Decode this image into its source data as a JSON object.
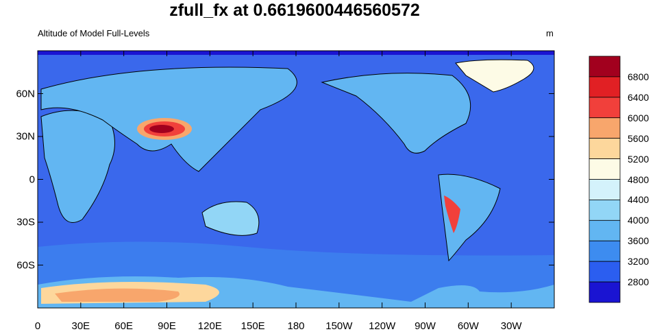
{
  "title": "zfull_fx at 0.6619600446560572",
  "subtitle_left": "Altitude of Model Full-Levels",
  "subtitle_right": "m",
  "map": {
    "projection": "cylindrical-equidistant",
    "lon_range": [
      0,
      360
    ],
    "lat_range": [
      -90,
      90
    ],
    "background_level_color": "#3a68ec",
    "y_ticks": [
      {
        "lat": 60,
        "label": "60N"
      },
      {
        "lat": 30,
        "label": "30N"
      },
      {
        "lat": 0,
        "label": "0"
      },
      {
        "lat": -30,
        "label": "30S"
      },
      {
        "lat": -60,
        "label": "60S"
      }
    ],
    "x_ticks": [
      {
        "lon": 0,
        "label": "0"
      },
      {
        "lon": 30,
        "label": "30E"
      },
      {
        "lon": 60,
        "label": "60E"
      },
      {
        "lon": 90,
        "label": "90E"
      },
      {
        "lon": 120,
        "label": "120E"
      },
      {
        "lon": 150,
        "label": "150E"
      },
      {
        "lon": 180,
        "label": "180"
      },
      {
        "lon": 210,
        "label": "150W"
      },
      {
        "lon": 240,
        "label": "120W"
      },
      {
        "lon": 270,
        "label": "90W"
      },
      {
        "lon": 300,
        "label": "60W"
      },
      {
        "lon": 330,
        "label": "30W"
      }
    ]
  },
  "colorbar": {
    "levels": [
      "2800",
      "3200",
      "3600",
      "4000",
      "4400",
      "4800",
      "5200",
      "5600",
      "6000",
      "6400",
      "6800"
    ],
    "colors": [
      "#1a14d2",
      "#2b5ef0",
      "#3d8cf0",
      "#62b6f2",
      "#92d6f6",
      "#d4f2fb",
      "#fdfbe6",
      "#fdd79c",
      "#f8a66c",
      "#f1403b",
      "#e12024",
      "#a2001e"
    ]
  }
}
